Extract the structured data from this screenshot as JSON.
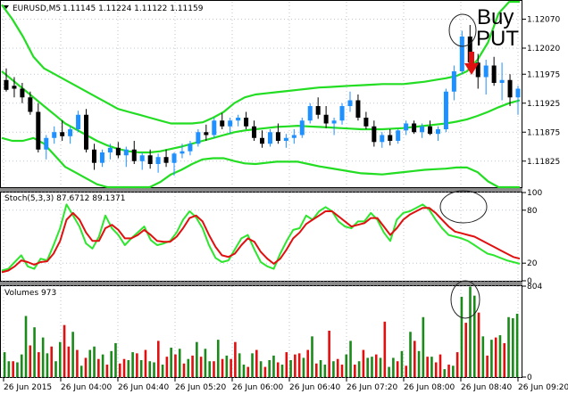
{
  "window": {
    "symbol_label": "EURUSD,M5",
    "ohlc_label": "1.11145 1.11224 1.11122 1.11159"
  },
  "annotation": {
    "line1": "Buy",
    "line2": "PUT"
  },
  "colors": {
    "bull": "#1e90ff",
    "bear": "#000000",
    "band": "#22dd22",
    "stoch_main": "#2ee62e",
    "stoch_signal": "#e01010",
    "volume_up": "#1a8a1a",
    "volume_down": "#e01010",
    "arrow": "#e01010"
  },
  "chart_data": [
    {
      "type": "candlestick",
      "title": "EURUSD,M5",
      "ylim": [
        1.1178,
        1.121
      ],
      "yticks": [
        "1.12070",
        "1.12020",
        "1.11975",
        "1.11925",
        "1.11875",
        "1.11825"
      ],
      "ytick_values": [
        1.1207,
        1.1202,
        1.11975,
        1.11925,
        1.11875,
        1.11825
      ],
      "candles": [
        [
          1.11965,
          1.11985,
          1.11945,
          1.11948
        ],
        [
          1.11955,
          1.1197,
          1.11935,
          1.1195
        ],
        [
          1.1195,
          1.1196,
          1.11925,
          1.11935
        ],
        [
          1.11935,
          1.11945,
          1.11905,
          1.1191
        ],
        [
          1.1191,
          1.11925,
          1.1184,
          1.11845
        ],
        [
          1.11845,
          1.1187,
          1.11828,
          1.11865
        ],
        [
          1.11865,
          1.11885,
          1.11855,
          1.11875
        ],
        [
          1.11875,
          1.11895,
          1.1186,
          1.11868
        ],
        [
          1.11868,
          1.11885,
          1.11855,
          1.1188
        ],
        [
          1.1188,
          1.11912,
          1.11875,
          1.11905
        ],
        [
          1.11905,
          1.11915,
          1.1184,
          1.11845
        ],
        [
          1.11845,
          1.11855,
          1.1181,
          1.11822
        ],
        [
          1.11822,
          1.11845,
          1.11815,
          1.1184
        ],
        [
          1.1184,
          1.11855,
          1.11828,
          1.11848
        ],
        [
          1.11848,
          1.11858,
          1.1183,
          1.11835
        ],
        [
          1.11835,
          1.1185,
          1.11815,
          1.11845
        ],
        [
          1.11845,
          1.1186,
          1.1182,
          1.11825
        ],
        [
          1.11825,
          1.1184,
          1.1181,
          1.11835
        ],
        [
          1.11835,
          1.11845,
          1.11812,
          1.1182
        ],
        [
          1.1182,
          1.11838,
          1.11805,
          1.11832
        ],
        [
          1.11832,
          1.11845,
          1.11815,
          1.11822
        ],
        [
          1.11822,
          1.1184,
          1.118,
          1.11838
        ],
        [
          1.11838,
          1.11855,
          1.1183,
          1.11842
        ],
        [
          1.11842,
          1.1186,
          1.11835,
          1.11855
        ],
        [
          1.11855,
          1.1188,
          1.1185,
          1.11875
        ],
        [
          1.11875,
          1.11888,
          1.1186,
          1.1187
        ],
        [
          1.1187,
          1.119,
          1.11865,
          1.11895
        ],
        [
          1.11895,
          1.11908,
          1.1188,
          1.11885
        ],
        [
          1.11885,
          1.119,
          1.11872,
          1.11895
        ],
        [
          1.11895,
          1.11905,
          1.11885,
          1.119
        ],
        [
          1.119,
          1.1191,
          1.1188,
          1.11885
        ],
        [
          1.11885,
          1.11895,
          1.1186,
          1.11865
        ],
        [
          1.11865,
          1.11878,
          1.11848,
          1.11855
        ],
        [
          1.11855,
          1.1188,
          1.1185,
          1.11875
        ],
        [
          1.11875,
          1.1189,
          1.11855,
          1.1186
        ],
        [
          1.1186,
          1.11872,
          1.11848,
          1.11865
        ],
        [
          1.11865,
          1.1188,
          1.11855,
          1.1187
        ],
        [
          1.1187,
          1.119,
          1.11865,
          1.11895
        ],
        [
          1.11895,
          1.11925,
          1.1189,
          1.1192
        ],
        [
          1.1192,
          1.11935,
          1.11898,
          1.11905
        ],
        [
          1.11905,
          1.1192,
          1.11882,
          1.1189
        ],
        [
          1.1189,
          1.119,
          1.1187,
          1.11895
        ],
        [
          1.11895,
          1.11925,
          1.11888,
          1.1192
        ],
        [
          1.1192,
          1.11945,
          1.1191,
          1.1193
        ],
        [
          1.1193,
          1.1194,
          1.11895,
          1.119
        ],
        [
          1.119,
          1.1191,
          1.1188,
          1.11885
        ],
        [
          1.11885,
          1.11895,
          1.1185,
          1.11858
        ],
        [
          1.11858,
          1.11875,
          1.11848,
          1.1187
        ],
        [
          1.1187,
          1.1188,
          1.11852,
          1.1186
        ],
        [
          1.1186,
          1.1188,
          1.11855,
          1.11878
        ],
        [
          1.11878,
          1.11895,
          1.1187,
          1.1189
        ],
        [
          1.1189,
          1.11895,
          1.11872,
          1.11875
        ],
        [
          1.11875,
          1.1189,
          1.11865,
          1.11885
        ],
        [
          1.11885,
          1.11895,
          1.1187,
          1.11872
        ],
        [
          1.11872,
          1.11885,
          1.1186,
          1.1188
        ],
        [
          1.1188,
          1.1195,
          1.11875,
          1.11945
        ],
        [
          1.11945,
          1.1199,
          1.1193,
          1.1198
        ],
        [
          1.1198,
          1.1205,
          1.11975,
          1.1204
        ],
        [
          1.1204,
          1.1206,
          1.1199,
          1.11995
        ],
        [
          1.11995,
          1.1201,
          1.1195,
          1.1197
        ],
        [
          1.1197,
          1.12,
          1.1194,
          1.1199
        ],
        [
          1.1199,
          1.12005,
          1.11955,
          1.1196
        ],
        [
          1.1196,
          1.11995,
          1.1193,
          1.11965
        ],
        [
          1.11965,
          1.11975,
          1.1192,
          1.11935
        ],
        [
          1.11935,
          1.11955,
          1.11905,
          1.1195
        ]
      ],
      "bollinger": {
        "upper": [
          1.12095,
          1.1207,
          1.1204,
          1.12005,
          1.11985,
          1.11975,
          1.11965,
          1.11955,
          1.11945,
          1.11935,
          1.11925,
          1.11915,
          1.1191,
          1.11905,
          1.119,
          1.11895,
          1.1189,
          1.1189,
          1.1189,
          1.11892,
          1.119,
          1.1191,
          1.11925,
          1.11935,
          1.1194,
          1.11942,
          1.11944,
          1.11946,
          1.11948,
          1.1195,
          1.11952,
          1.11953,
          1.11954,
          1.11955,
          1.11956,
          1.11957,
          1.11958,
          1.11958,
          1.11958,
          1.1196,
          1.11962,
          1.11965,
          1.11968,
          1.11972,
          1.1198,
          1.12,
          1.1203,
          1.1208,
          1.1212,
          1.1217
        ],
        "middle": [
          1.1198,
          1.11965,
          1.1195,
          1.11935,
          1.1192,
          1.11905,
          1.1189,
          1.1188,
          1.1187,
          1.1186,
          1.11852,
          1.11846,
          1.11842,
          1.1184,
          1.1184,
          1.11842,
          1.11846,
          1.1185,
          1.11855,
          1.1186,
          1.11865,
          1.1187,
          1.11875,
          1.11878,
          1.1188,
          1.11882,
          1.11884,
          1.11885,
          1.11886,
          1.11885,
          1.11884,
          1.11883,
          1.11882,
          1.11881,
          1.1188,
          1.1188,
          1.1188,
          1.11881,
          1.11882,
          1.11884,
          1.11886,
          1.11888,
          1.1189,
          1.11893,
          1.11897,
          1.11903,
          1.1191,
          1.11918,
          1.11925,
          1.1193
        ],
        "lower": [
          1.11865,
          1.1186,
          1.1186,
          1.11865,
          1.11855,
          1.11835,
          1.11815,
          1.11805,
          1.11795,
          1.11785,
          1.11779,
          1.11777,
          1.11774,
          1.11775,
          1.1178,
          1.11789,
          1.11802,
          1.1181,
          1.1182,
          1.11828,
          1.1183,
          1.1183,
          1.11825,
          1.11821,
          1.1182,
          1.11822,
          1.11824,
          1.11824,
          1.11824,
          1.1182,
          1.11816,
          1.11813,
          1.1181,
          1.11807,
          1.11804,
          1.11803,
          1.11802,
          1.11804,
          1.11806,
          1.11808,
          1.1181,
          1.11811,
          1.11812,
          1.11814,
          1.11814,
          1.11806,
          1.1179,
          1.11756,
          1.1173,
          1.1169
        ]
      }
    },
    {
      "type": "line",
      "title": "Stoch(5,3,3) 87.6712 89.1371",
      "ylim": [
        0,
        100
      ],
      "yticks": [
        "100",
        "80",
        "20",
        "0"
      ],
      "ytick_values": [
        100,
        80,
        20,
        0
      ],
      "series": [
        {
          "name": "Stoch(5,3,3) main",
          "values": [
            10,
            12,
            20,
            28,
            15,
            12,
            24,
            22,
            40,
            60,
            88,
            75,
            62,
            42,
            36,
            50,
            75,
            60,
            52,
            40,
            48,
            55,
            62,
            46,
            40,
            42,
            45,
            55,
            70,
            80,
            73,
            60,
            40,
            25,
            20,
            22,
            35,
            48,
            52,
            35,
            20,
            15,
            12,
            30,
            45,
            58,
            60,
            75,
            70,
            80,
            85,
            80,
            68,
            62,
            60,
            68,
            68,
            78,
            70,
            55,
            45,
            70,
            78,
            80,
            84,
            88,
            82,
            70,
            60,
            52,
            50,
            48,
            45,
            40,
            35,
            30,
            28,
            25,
            22,
            20,
            18
          ]
        },
        {
          "name": "Stoch(5,3,3) signal",
          "values": [
            8,
            10,
            15,
            22,
            20,
            17,
            20,
            21,
            30,
            45,
            70,
            78,
            70,
            55,
            45,
            45,
            60,
            64,
            58,
            48,
            48,
            52,
            58,
            52,
            45,
            44,
            44,
            50,
            60,
            72,
            75,
            68,
            52,
            38,
            28,
            26,
            30,
            40,
            48,
            44,
            32,
            24,
            18,
            24,
            35,
            48,
            55,
            65,
            70,
            75,
            80,
            80,
            74,
            68,
            62,
            64,
            66,
            72,
            72,
            62,
            52,
            60,
            70,
            76,
            80,
            84,
            84,
            78,
            70,
            62,
            56,
            54,
            52,
            50,
            46,
            42,
            38,
            34,
            30,
            26,
            24
          ]
        }
      ]
    },
    {
      "type": "bar",
      "title": "Volumes 973",
      "ylim": [
        0,
        804
      ],
      "yticks": [
        "804",
        "0"
      ],
      "ytick_values": [
        804,
        0
      ],
      "values": [
        220,
        140,
        140,
        130,
        200,
        540,
        280,
        440,
        220,
        350,
        210,
        270,
        140,
        310,
        460,
        270,
        400,
        240,
        100,
        170,
        240,
        270,
        160,
        200,
        110,
        230,
        300,
        120,
        160,
        150,
        220,
        210,
        150,
        240,
        140,
        130,
        320,
        110,
        180,
        260,
        200,
        250,
        120,
        160,
        190,
        310,
        180,
        250,
        140,
        140,
        330,
        160,
        190,
        160,
        310,
        210,
        110,
        90,
        210,
        240,
        140,
        90,
        150,
        190,
        130,
        110,
        220,
        150,
        200,
        210,
        170,
        240,
        360,
        120,
        150,
        110,
        410,
        140,
        160,
        110,
        200,
        320,
        110,
        140,
        240,
        170,
        180,
        200,
        170,
        490,
        90,
        170,
        140,
        230,
        100,
        400,
        320,
        230,
        530,
        180,
        180,
        130,
        200,
        70,
        110,
        100,
        220,
        710,
        480,
        800,
        720,
        570,
        360,
        190,
        330,
        350,
        370,
        300,
        530,
        520,
        560
      ],
      "up": [
        1,
        1,
        0,
        1,
        1,
        1,
        0,
        1,
        0,
        1,
        1,
        0,
        1,
        1,
        0,
        0,
        1,
        0,
        1,
        0,
        1,
        1,
        0,
        1,
        0,
        1,
        1,
        0,
        0,
        1,
        1,
        0,
        1,
        0,
        1,
        1,
        0,
        1,
        0,
        1,
        0,
        1,
        0,
        1,
        0,
        1,
        0,
        1,
        1,
        0,
        1,
        0,
        1,
        0,
        0,
        1,
        1,
        0,
        1,
        0,
        1,
        0,
        1,
        1,
        0,
        1,
        0,
        1,
        0,
        0,
        1,
        0,
        1,
        0,
        1,
        1,
        0,
        1,
        0,
        0,
        1,
        1,
        0,
        1,
        0,
        1,
        1,
        0,
        1,
        0,
        1,
        1,
        0,
        1,
        0,
        1,
        0,
        1,
        1,
        0,
        1,
        0,
        0,
        1,
        0,
        1,
        0,
        1,
        0,
        1,
        1,
        0,
        1,
        0,
        1,
        0,
        1,
        0,
        1,
        1,
        1
      ]
    },
    {
      "type": "axis",
      "x_ticks": [
        "26 Jun 2015",
        "26 Jun 04:00",
        "26 Jun 04:40",
        "26 Jun 05:20",
        "26 Jun 06:00",
        "26 Jun 06:40",
        "26 Jun 07:20",
        "26 Jun 08:00",
        "26 Jun 08:40",
        "26 Jun 09:20"
      ]
    }
  ]
}
